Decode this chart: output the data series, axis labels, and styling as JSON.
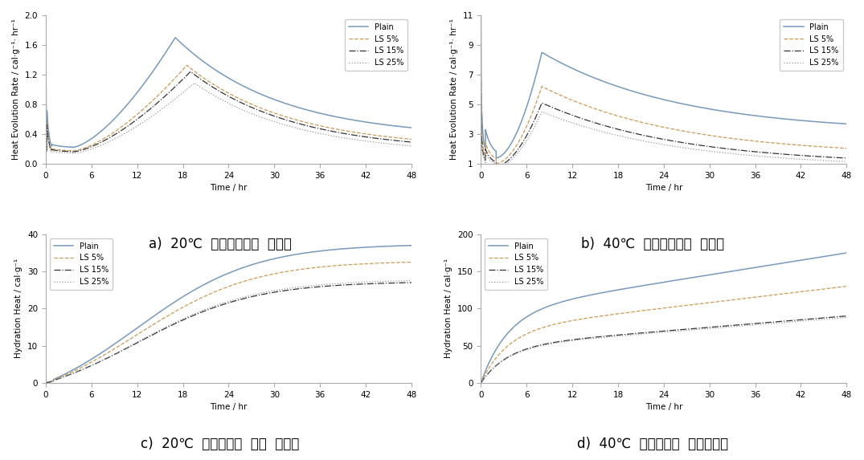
{
  "series_labels": [
    "Plain",
    "LS 5%",
    "LS 15%",
    "LS 25%"
  ],
  "series_colors": [
    "#7799bb",
    "#cc9955",
    "#333333",
    "#999999"
  ],
  "series_styles": [
    "-",
    "--",
    "-.",
    ":"
  ],
  "series_linewidths": [
    1.1,
    0.9,
    0.9,
    0.9
  ],
  "subplot_a_title": "a)  20℃  수화발열속도  그래프",
  "subplot_b_title": "b)  40℃  수화발열속도  그래프",
  "subplot_c_title": "c)  20℃  미소수화열  누적  그래프",
  "subplot_d_title": "d)  40℃  미소수화열  누적그래프",
  "xlabel": "Time / hr",
  "ylabel_a": "Heat Evolution Rate / cal·g⁻¹· hr⁻¹",
  "ylabel_b": "Heat Evolution Rate / cal·g⁻¹· hr⁻¹",
  "ylabel_c": "Hydration Heat / cal·g⁻¹",
  "ylabel_d": "Hydration Heat / cal·g⁻¹",
  "xlim": [
    0,
    48
  ],
  "xticks": [
    0,
    6,
    12,
    18,
    24,
    30,
    36,
    42,
    48
  ],
  "ylim_a": [
    0,
    2.0
  ],
  "yticks_a": [
    0.0,
    0.4,
    0.8,
    1.2,
    1.6,
    2.0
  ],
  "ylim_b": [
    1,
    11
  ],
  "yticks_b": [
    1,
    3,
    5,
    7,
    9,
    11
  ],
  "ylim_c": [
    0,
    40
  ],
  "yticks_c": [
    0,
    10,
    20,
    30,
    40
  ],
  "ylim_d": [
    0,
    200
  ],
  "yticks_d": [
    0,
    50,
    100,
    150,
    200
  ],
  "background_color": "#ffffff",
  "title_fontsize": 12,
  "axis_fontsize": 7.5,
  "tick_fontsize": 7.5,
  "legend_fontsize": 7.0
}
